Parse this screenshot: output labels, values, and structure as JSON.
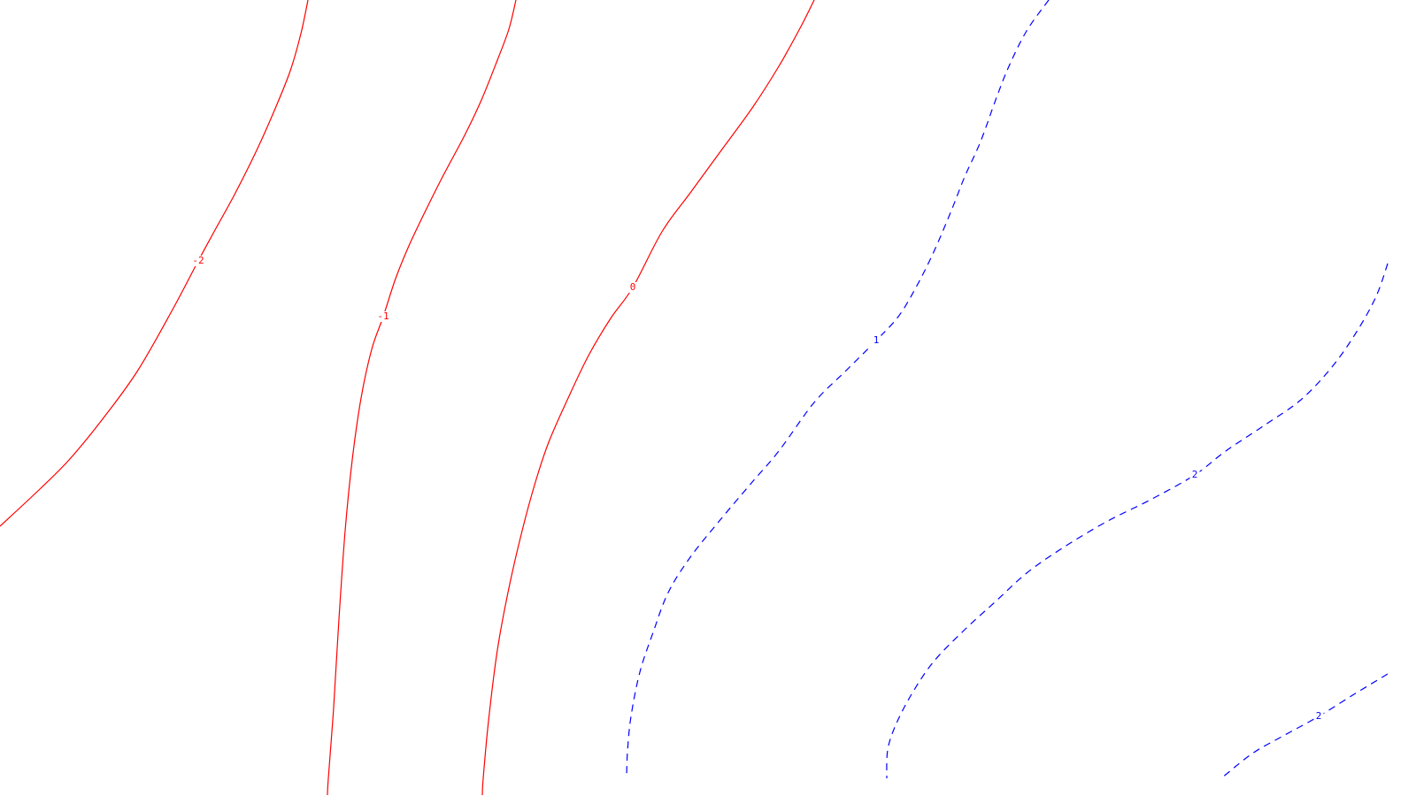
{
  "colors": {
    "negative_and_zero": "#ff0000",
    "positive": "#0000ff",
    "background": "#ffffff"
  },
  "chart_data": {
    "type": "contour",
    "title": "",
    "xlabel": "",
    "ylabel": "",
    "grid": false,
    "legend": "none",
    "line_styles": {
      "negative_and_zero": "solid",
      "positive": "dashed"
    },
    "contours": [
      {
        "level": -2,
        "label": "-2",
        "color": "#ff0000",
        "style": "solid",
        "points": [
          [
            348,
            0
          ],
          [
            340,
            38
          ],
          [
            328,
            80
          ],
          [
            310,
            125
          ],
          [
            290,
            170
          ],
          [
            265,
            220
          ],
          [
            243,
            260
          ],
          [
            224,
            295
          ],
          [
            195,
            350
          ],
          [
            155,
            420
          ],
          [
            115,
            475
          ],
          [
            78,
            520
          ],
          [
            45,
            553
          ],
          [
            0,
            595
          ]
        ],
        "label_at": [
          224,
          295
        ]
      },
      {
        "level": -1,
        "label": "-1",
        "color": "#ff0000",
        "style": "solid",
        "points": [
          [
            583,
            0
          ],
          [
            575,
            33
          ],
          [
            562,
            68
          ],
          [
            544,
            113
          ],
          [
            525,
            153
          ],
          [
            500,
            200
          ],
          [
            480,
            240
          ],
          [
            462,
            278
          ],
          [
            447,
            315
          ],
          [
            433,
            358
          ],
          [
            420,
            395
          ],
          [
            408,
            450
          ],
          [
            398,
            520
          ],
          [
            390,
            600
          ],
          [
            383,
            700
          ],
          [
            377,
            800
          ],
          [
            371,
            880
          ],
          [
            370,
            899
          ]
        ],
        "label_at": [
          433,
          358
        ]
      },
      {
        "level": 0,
        "label": "0",
        "color": "#ff0000",
        "style": "solid",
        "points": [
          [
            920,
            0
          ],
          [
            905,
            30
          ],
          [
            880,
            75
          ],
          [
            850,
            122
          ],
          [
            815,
            170
          ],
          [
            780,
            218
          ],
          [
            748,
            262
          ],
          [
            715,
            325
          ],
          [
            690,
            360
          ],
          [
            665,
            402
          ],
          [
            642,
            450
          ],
          [
            620,
            500
          ],
          [
            605,
            545
          ],
          [
            590,
            600
          ],
          [
            575,
            665
          ],
          [
            562,
            735
          ],
          [
            552,
            815
          ],
          [
            546,
            880
          ],
          [
            545,
            899
          ]
        ],
        "label_at": [
          715,
          325
        ]
      },
      {
        "level": 1,
        "label": "1",
        "color": "#0000ff",
        "style": "dashed",
        "points": [
          [
            1185,
            0
          ],
          [
            1160,
            35
          ],
          [
            1140,
            75
          ],
          [
            1125,
            113
          ],
          [
            1108,
            160
          ],
          [
            1090,
            200
          ],
          [
            1075,
            238
          ],
          [
            1055,
            285
          ],
          [
            1035,
            325
          ],
          [
            1015,
            358
          ],
          [
            990,
            385
          ],
          [
            955,
            420
          ],
          [
            920,
            455
          ],
          [
            880,
            510
          ],
          [
            850,
            545
          ],
          [
            812,
            590
          ],
          [
            780,
            630
          ],
          [
            755,
            670
          ],
          [
            738,
            715
          ],
          [
            723,
            760
          ],
          [
            713,
            810
          ],
          [
            709,
            850
          ],
          [
            708,
            880
          ]
        ],
        "label_at": [
          990,
          385
        ]
      },
      {
        "level": 2,
        "label": "2",
        "color": "#0000ff",
        "style": "dashed",
        "points": [
          [
            1568,
            298
          ],
          [
            1555,
            335
          ],
          [
            1533,
            375
          ],
          [
            1505,
            415
          ],
          [
            1470,
            452
          ],
          [
            1430,
            480
          ],
          [
            1385,
            510
          ],
          [
            1350,
            537
          ],
          [
            1300,
            565
          ],
          [
            1250,
            590
          ],
          [
            1200,
            620
          ],
          [
            1160,
            648
          ],
          [
            1125,
            680
          ],
          [
            1090,
            712
          ],
          [
            1055,
            748
          ],
          [
            1030,
            785
          ],
          [
            1012,
            820
          ],
          [
            1003,
            848
          ],
          [
            1002,
            880
          ]
        ],
        "label_at": [
          1350,
          537
        ]
      },
      {
        "level": 2,
        "label": "2",
        "color": "#0000ff",
        "style": "dashed",
        "points": [
          [
            1568,
            762
          ],
          [
            1530,
            785
          ],
          [
            1490,
            810
          ],
          [
            1450,
            832
          ],
          [
            1415,
            852
          ],
          [
            1380,
            880
          ]
        ],
        "label_at": [
          1490,
          810
        ]
      }
    ]
  }
}
